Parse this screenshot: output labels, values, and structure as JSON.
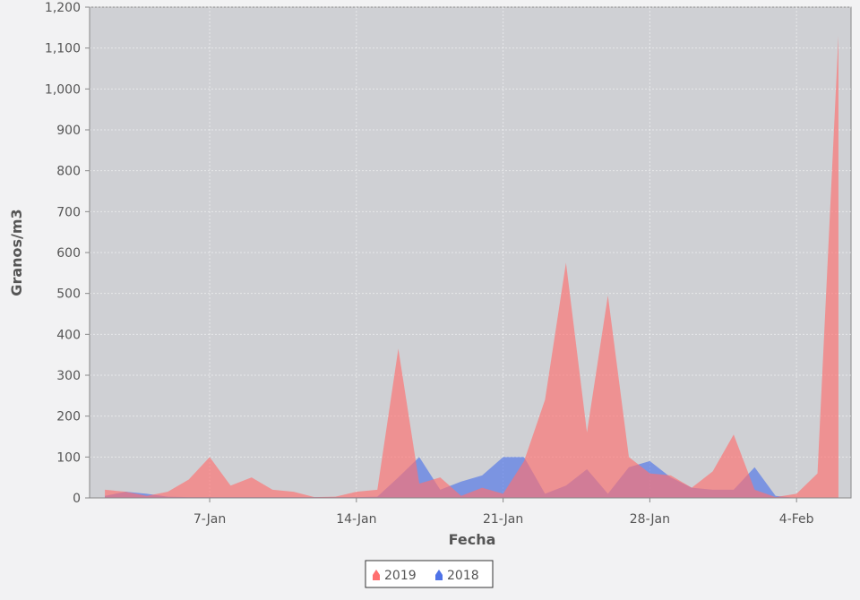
{
  "chart_data": {
    "type": "area",
    "x": [
      "2-Jan",
      "3-Jan",
      "4-Jan",
      "5-Jan",
      "6-Jan",
      "7-Jan",
      "8-Jan",
      "9-Jan",
      "10-Jan",
      "11-Jan",
      "12-Jan",
      "13-Jan",
      "14-Jan",
      "15-Jan",
      "16-Jan",
      "17-Jan",
      "18-Jan",
      "19-Jan",
      "20-Jan",
      "21-Jan",
      "22-Jan",
      "23-Jan",
      "24-Jan",
      "25-Jan",
      "26-Jan",
      "27-Jan",
      "28-Jan",
      "29-Jan",
      "30-Jan",
      "31-Jan",
      "1-Feb",
      "2-Feb",
      "3-Feb",
      "4-Feb",
      "5-Feb",
      "6-Feb"
    ],
    "series": [
      {
        "name": "2019",
        "color": "#ff6f6f",
        "values": [
          20,
          15,
          5,
          15,
          45,
          100,
          30,
          50,
          20,
          15,
          2,
          3,
          15,
          20,
          365,
          35,
          50,
          5,
          25,
          10,
          90,
          240,
          575,
          160,
          495,
          100,
          60,
          55,
          25,
          65,
          155,
          20,
          2,
          10,
          60,
          1130
        ]
      },
      {
        "name": "2018",
        "color": "#4f73e8",
        "values": [
          5,
          15,
          10,
          3,
          2,
          2,
          2,
          2,
          2,
          2,
          2,
          2,
          2,
          3,
          50,
          100,
          20,
          40,
          55,
          100,
          100,
          10,
          30,
          70,
          10,
          75,
          90,
          50,
          25,
          20,
          20,
          75,
          5,
          0,
          0,
          0
        ]
      }
    ],
    "x_label": "Fecha",
    "y_label": "Granos/m3",
    "ylim": [
      0,
      1200
    ],
    "yticks": [
      0,
      100,
      200,
      300,
      400,
      500,
      600,
      700,
      800,
      900,
      {
        "value": 1000,
        "label": "1,000"
      },
      {
        "value": 1100,
        "label": "1,100"
      },
      {
        "value": 1200,
        "label": "1,200"
      }
    ],
    "xticks": [
      "7-Jan",
      "14-Jan",
      "21-Jan",
      "28-Jan",
      "4-Feb"
    ],
    "grid": true,
    "legend": "bottom"
  }
}
